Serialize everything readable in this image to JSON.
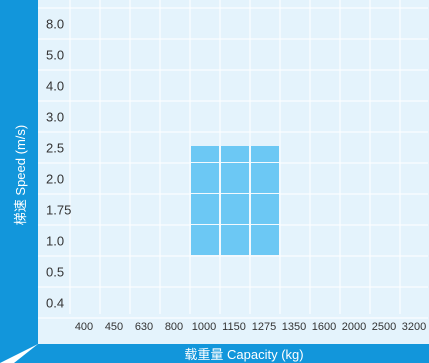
{
  "chart_data": {
    "type": "heatmap",
    "title": "",
    "xlabel": "载重量 Capacity (kg)",
    "ylabel": "梯速 Speed (m/s)",
    "x_categories": [
      "400",
      "450",
      "630",
      "800",
      "1000",
      "1150",
      "1275",
      "1350",
      "1600",
      "2000",
      "2500",
      "3200"
    ],
    "y_categories": [
      "8.0",
      "5.0",
      "4.0",
      "3.0",
      "2.5",
      "2.0",
      "1.75",
      "1.0",
      "0.5",
      "0.4"
    ],
    "highlighted_cells": [
      {
        "x": "1000",
        "y": "2.5"
      },
      {
        "x": "1150",
        "y": "2.5"
      },
      {
        "x": "1275",
        "y": "2.5"
      },
      {
        "x": "1000",
        "y": "2.0"
      },
      {
        "x": "1150",
        "y": "2.0"
      },
      {
        "x": "1275",
        "y": "2.0"
      },
      {
        "x": "1000",
        "y": "1.75"
      },
      {
        "x": "1150",
        "y": "1.75"
      },
      {
        "x": "1275",
        "y": "1.75"
      },
      {
        "x": "1000",
        "y": "1.0"
      },
      {
        "x": "1150",
        "y": "1.0"
      },
      {
        "x": "1275",
        "y": "1.0"
      }
    ],
    "grid": true,
    "colors": {
      "axis_band": "#1296db",
      "plot_background": "#e4f3fc",
      "highlight": "#6cc8f4",
      "grid": "#ffffff",
      "tick_text": "#333333",
      "axis_title_text": "#ffffff"
    }
  }
}
